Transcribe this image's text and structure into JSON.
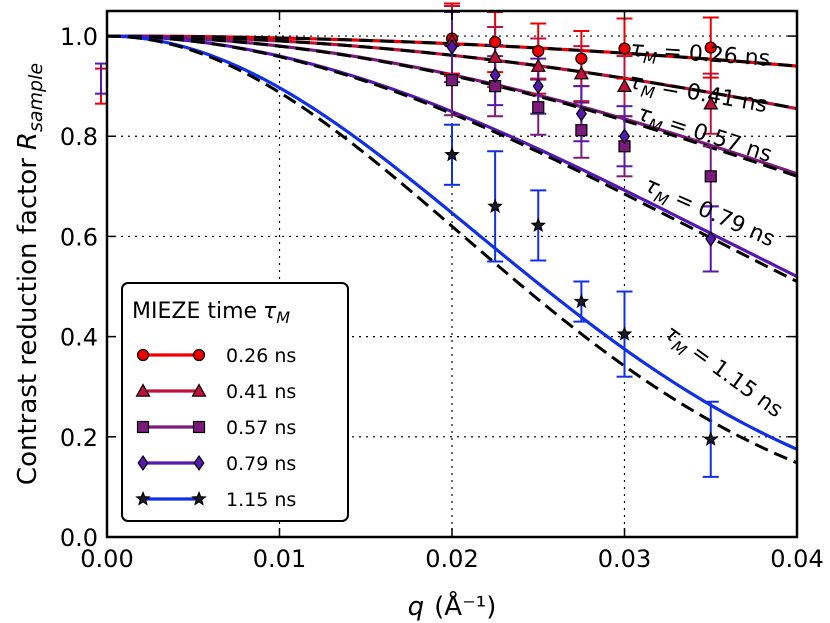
{
  "chart_data": {
    "type": "line",
    "xlabel": "q",
    "xlabel_unit": "(Å⁻¹)",
    "ylabel": "Contrast reduction factor",
    "ylabel_symbol": "R",
    "ylabel_subscript": "sample",
    "xlim": [
      0.0,
      0.04
    ],
    "ylim": [
      0.0,
      1.05
    ],
    "x_ticks": [
      0.0,
      0.01,
      0.02,
      0.03,
      0.04
    ],
    "x_tick_labels": [
      "0.00",
      "0.01",
      "0.02",
      "0.03",
      "0.04"
    ],
    "y_ticks": [
      0.0,
      0.2,
      0.4,
      0.6,
      0.8,
      1.0
    ],
    "y_tick_labels": [
      "0.0",
      "0.2",
      "0.4",
      "0.6",
      "0.8",
      "1.0"
    ],
    "grid": true,
    "legend": {
      "placement": "lower-left",
      "title_text": "MIEZE time",
      "title_symbol": "τ",
      "title_subscript": "M"
    },
    "series": [
      {
        "name": "0.26 ns",
        "label": "τM = 0.26 ns",
        "label_symbol": "τ",
        "label_subscript": "M",
        "label_value": "= 0.26 ns",
        "color": "#ee0000",
        "marker": "circle",
        "curve_end": 0.94,
        "dashed_end": 0.94,
        "points": [
          {
            "x": 0.02,
            "y": 0.995,
            "err": 0.07
          },
          {
            "x": 0.0225,
            "y": 0.988,
            "err": 0.06
          },
          {
            "x": 0.025,
            "y": 0.97,
            "err": 0.055
          },
          {
            "x": 0.0275,
            "y": 0.955,
            "err": 0.055
          },
          {
            "x": 0.03,
            "y": 0.975,
            "err": 0.06
          },
          {
            "x": 0.035,
            "y": 0.977,
            "err": 0.06
          }
        ]
      },
      {
        "name": "0.41 ns",
        "label": "τM = 0.41 ns",
        "label_symbol": "τ",
        "label_subscript": "M",
        "label_value": "= 0.41 ns",
        "color": "#c0103c",
        "marker": "triangle",
        "curve_end": 0.855,
        "dashed_end": 0.855,
        "points": [
          {
            "x": 0.02,
            "y": 0.99,
            "err": 0.07
          },
          {
            "x": 0.0225,
            "y": 0.958,
            "err": 0.06
          },
          {
            "x": 0.025,
            "y": 0.94,
            "err": 0.055
          },
          {
            "x": 0.0275,
            "y": 0.925,
            "err": 0.055
          },
          {
            "x": 0.03,
            "y": 0.9,
            "err": 0.06
          },
          {
            "x": 0.035,
            "y": 0.865,
            "err": 0.06
          }
        ]
      },
      {
        "name": "0.57 ns",
        "label": "τM = 0.57 ns",
        "label_symbol": "τ",
        "label_subscript": "M",
        "label_value": "= 0.57 ns",
        "color": "#7a1a7a",
        "marker": "square",
        "curve_end": 0.725,
        "dashed_end": 0.72,
        "points": [
          {
            "x": 0.02,
            "y": 0.912,
            "err": 0.07
          },
          {
            "x": 0.0225,
            "y": 0.9,
            "err": 0.06
          },
          {
            "x": 0.025,
            "y": 0.858,
            "err": 0.055
          },
          {
            "x": 0.0275,
            "y": 0.812,
            "err": 0.055
          },
          {
            "x": 0.03,
            "y": 0.78,
            "err": 0.06
          },
          {
            "x": 0.035,
            "y": 0.72,
            "err": 0.06
          }
        ]
      },
      {
        "name": "0.79 ns",
        "label": "τM = 0.79 ns",
        "label_symbol": "τ",
        "label_subscript": "M",
        "label_value": "= 0.79 ns",
        "color": "#5518b0",
        "marker": "diamond",
        "curve_end": 0.52,
        "dashed_end": 0.51,
        "points": [
          {
            "x": 0.02,
            "y": 0.978,
            "err": 0.07
          },
          {
            "x": 0.0225,
            "y": 0.922,
            "err": 0.06
          },
          {
            "x": 0.025,
            "y": 0.9,
            "err": 0.055
          },
          {
            "x": 0.0275,
            "y": 0.845,
            "err": 0.055
          },
          {
            "x": 0.03,
            "y": 0.8,
            "err": 0.06
          },
          {
            "x": 0.035,
            "y": 0.595,
            "err": 0.065
          }
        ]
      },
      {
        "name": "1.15 ns",
        "label": "τM = 1.15 ns",
        "label_symbol": "τ",
        "label_subscript": "M",
        "label_value": "= 1.15 ns",
        "color": "#1030e8",
        "marker": "star",
        "curve_end": 0.175,
        "dashed_end": 0.148,
        "points": [
          {
            "x": 0.02,
            "y": 0.763,
            "err": 0.06
          },
          {
            "x": 0.0225,
            "y": 0.66,
            "err": 0.11
          },
          {
            "x": 0.025,
            "y": 0.622,
            "err": 0.07
          },
          {
            "x": 0.0275,
            "y": 0.47,
            "err": 0.04
          },
          {
            "x": 0.03,
            "y": 0.405,
            "err": 0.085
          },
          {
            "x": 0.035,
            "y": 0.195,
            "err": 0.075
          }
        ]
      }
    ],
    "edge_markers": [
      {
        "y": 0.9,
        "err": 0.035,
        "color": "#ee0000"
      },
      {
        "y": 0.915,
        "err": 0.03,
        "color": "#5518b0"
      }
    ]
  }
}
